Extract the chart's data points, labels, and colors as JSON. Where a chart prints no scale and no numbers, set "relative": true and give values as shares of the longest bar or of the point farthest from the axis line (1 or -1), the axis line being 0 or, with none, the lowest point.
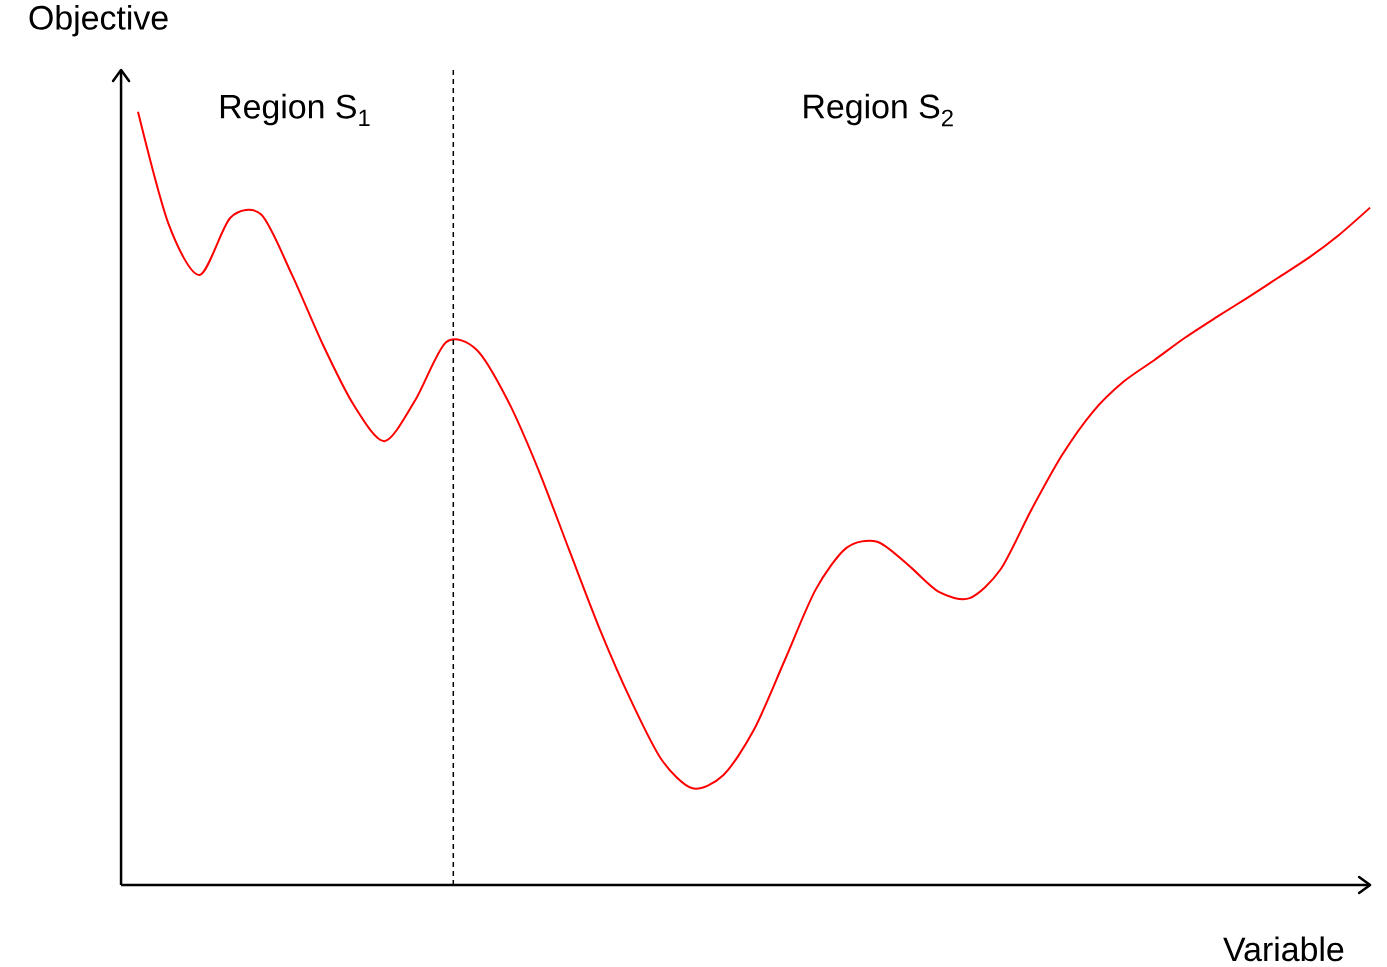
{
  "chart_data": {
    "type": "line",
    "relative": true,
    "xlabel": "Variable",
    "ylabel": "Objective",
    "categories": [
      null,
      null,
      null,
      null,
      null,
      null,
      null,
      null,
      null,
      null,
      null,
      null,
      null,
      null,
      null,
      null,
      null,
      null,
      null,
      null,
      null,
      null,
      null,
      null,
      null,
      null,
      null,
      null,
      null,
      null,
      null,
      null,
      null,
      null,
      null,
      null,
      null,
      null,
      null,
      null,
      null
    ],
    "values": [
      1,
      0.854,
      0.789,
      0.863,
      0.867,
      0.789,
      0.699,
      0.621,
      0.574,
      0.627,
      0.702,
      0.692,
      0.627,
      0.537,
      0.433,
      0.33,
      0.239,
      0.162,
      0.125,
      0.142,
      0.201,
      0.291,
      0.382,
      0.436,
      0.444,
      0.414,
      0.379,
      0.371,
      0.408,
      0.485,
      0.556,
      0.612,
      0.651,
      0.679,
      0.708,
      0.734,
      0.759,
      0.785,
      0.811,
      0.841,
      0.876
    ],
    "color": "#ff0000",
    "annotations": [
      "Region S$_{1}$",
      "Region S$_{2}$"
    ]
  }
}
